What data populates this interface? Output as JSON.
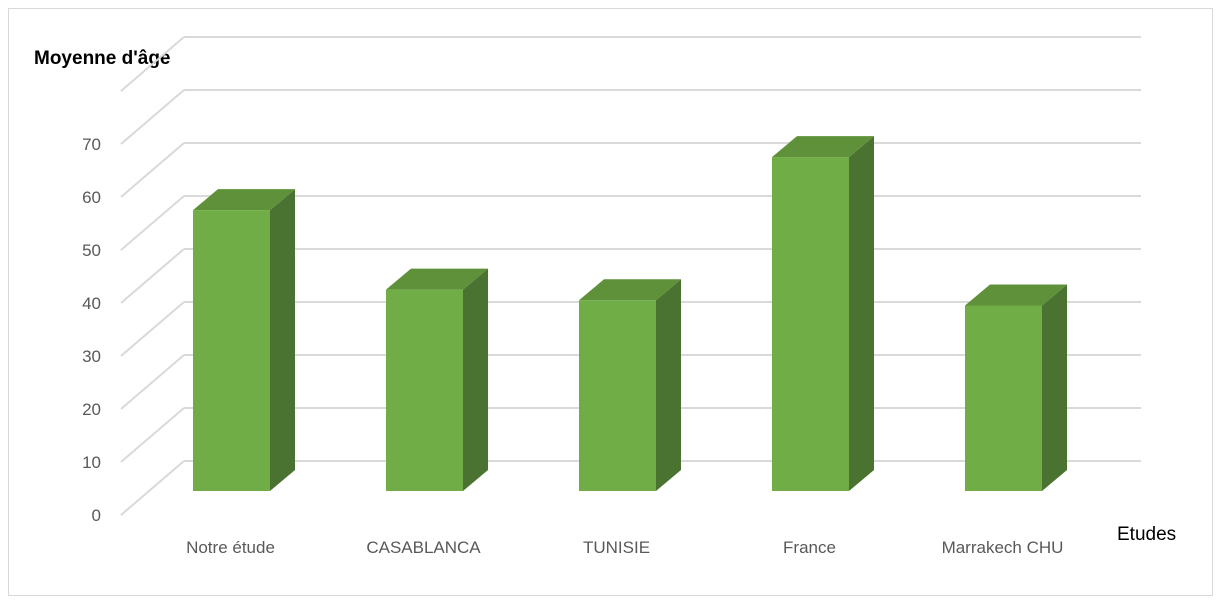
{
  "chart_data": {
    "type": "bar",
    "ylabel": "Moyenne d'âge",
    "xlabel": "Etudes",
    "categories": [
      "Notre étude",
      "CASABLANCA",
      "TUNISIE",
      "France",
      "Marrakech CHU"
    ],
    "values": [
      53,
      38,
      36,
      63,
      35
    ],
    "ylim": [
      0,
      70
    ],
    "yticks": [
      0,
      10,
      20,
      30,
      40,
      50,
      60,
      70
    ],
    "grid": true,
    "style": "3d",
    "colors": {
      "front": "#70ad47",
      "top": "#5e913a",
      "side": "#4a7230",
      "grid": "#d9d9d9"
    }
  }
}
